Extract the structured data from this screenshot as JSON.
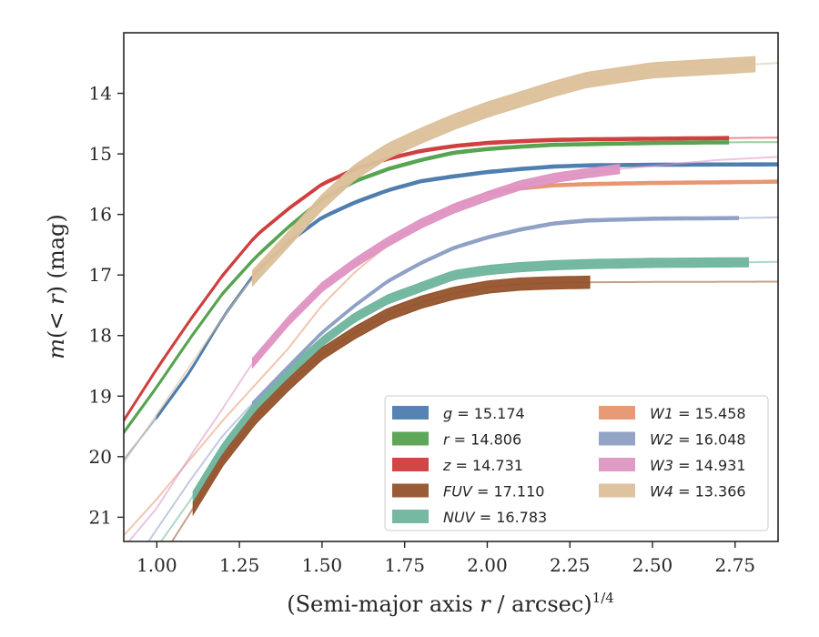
{
  "chart_data": {
    "type": "line",
    "title": "",
    "xlabel": "(Semi-major axis r / arcsec)",
    "xlabel_parts": {
      "prefix": "(Semi-major axis ",
      "var": "r",
      "suffix": " / arcsec)",
      "sup": "1/4"
    },
    "ylabel": "m(< r) (mag)",
    "ylabel_parts": {
      "var": "m",
      "paren": "(< ",
      "var2": "r",
      "close": ")",
      "unit": " (mag)"
    },
    "xlim": [
      0.9,
      2.88
    ],
    "ylim": [
      21.4,
      13.0
    ],
    "y_inverted": true,
    "xticks": [
      "1.00",
      "1.25",
      "1.50",
      "1.75",
      "2.00",
      "2.25",
      "2.50",
      "2.75"
    ],
    "xtick_values": [
      1.0,
      1.25,
      1.5,
      1.75,
      2.0,
      2.25,
      2.5,
      2.75
    ],
    "yticks": [
      "14",
      "15",
      "16",
      "17",
      "18",
      "19",
      "20",
      "21"
    ],
    "ytick_values": [
      14,
      15,
      16,
      17,
      18,
      19,
      20,
      21
    ],
    "grid": false,
    "legend_placement": "lower-right",
    "series": [
      {
        "name": "g = 15.174",
        "band": "g",
        "value": "15.174",
        "color": "#4c7cae",
        "width": 0.05,
        "x_fit": [
          0.9,
          2.88
        ],
        "x_obs": [
          1.0,
          2.88
        ],
        "x": [
          0.9,
          1.0,
          1.1,
          1.2,
          1.3,
          1.4,
          1.5,
          1.6,
          1.7,
          1.8,
          1.9,
          2.0,
          2.1,
          2.2,
          2.3,
          2.5,
          2.7,
          2.88
        ],
        "y": [
          20.05,
          19.35,
          18.6,
          17.7,
          16.95,
          16.45,
          16.05,
          15.8,
          15.6,
          15.45,
          15.37,
          15.3,
          15.25,
          15.21,
          15.19,
          15.18,
          15.175,
          15.174
        ]
      },
      {
        "name": "r = 14.806",
        "band": "r",
        "value": "14.806",
        "color": "#55a24f",
        "width": 0.05,
        "x_fit": [
          0.9,
          2.88
        ],
        "x_obs": [
          0.9,
          2.73
        ],
        "x": [
          0.9,
          1.0,
          1.1,
          1.2,
          1.3,
          1.4,
          1.5,
          1.6,
          1.7,
          1.8,
          1.9,
          2.0,
          2.1,
          2.2,
          2.3,
          2.5,
          2.7,
          2.88
        ],
        "y": [
          19.6,
          18.85,
          18.05,
          17.3,
          16.7,
          16.2,
          15.75,
          15.45,
          15.25,
          15.1,
          14.98,
          14.92,
          14.88,
          14.85,
          14.84,
          14.82,
          14.81,
          14.806
        ]
      },
      {
        "name": "z = 14.731",
        "band": "z",
        "value": "14.731",
        "color": "#d03c3c",
        "width": 0.05,
        "x_fit": [
          0.9,
          2.88
        ],
        "x_obs": [
          0.9,
          2.73
        ],
        "x": [
          0.9,
          1.0,
          1.1,
          1.2,
          1.3,
          1.4,
          1.5,
          1.6,
          1.7,
          1.8,
          1.9,
          2.0,
          2.1,
          2.2,
          2.3,
          2.5,
          2.7,
          2.88
        ],
        "y": [
          19.4,
          18.55,
          17.75,
          17.0,
          16.35,
          15.9,
          15.5,
          15.25,
          15.08,
          14.95,
          14.87,
          14.82,
          14.79,
          14.77,
          14.76,
          14.75,
          14.74,
          14.731
        ]
      },
      {
        "name": "FUV = 17.110",
        "band": "FUV",
        "value": "17.110",
        "color": "#93532b",
        "width": 0.2,
        "x_fit": [
          0.9,
          2.88
        ],
        "x_obs": [
          1.11,
          2.31
        ],
        "x": [
          0.9,
          1.0,
          1.11,
          1.2,
          1.3,
          1.4,
          1.5,
          1.6,
          1.7,
          1.8,
          1.9,
          2.0,
          2.1,
          2.2,
          2.31,
          2.5,
          2.7,
          2.88
        ],
        "y": [
          22.4,
          21.8,
          20.85,
          20.05,
          19.35,
          18.8,
          18.3,
          17.95,
          17.65,
          17.45,
          17.3,
          17.2,
          17.15,
          17.13,
          17.12,
          17.115,
          17.112,
          17.11
        ]
      },
      {
        "name": "NUV = 16.783",
        "band": "NUV",
        "value": "16.783",
        "color": "#6fb59e",
        "width": 0.15,
        "x_fit": [
          0.9,
          2.88
        ],
        "x_obs": [
          1.11,
          2.79
        ],
        "x": [
          0.9,
          1.0,
          1.11,
          1.2,
          1.3,
          1.4,
          1.5,
          1.6,
          1.7,
          1.8,
          1.9,
          2.0,
          2.1,
          2.2,
          2.3,
          2.5,
          2.79,
          2.88
        ],
        "y": [
          22.1,
          21.5,
          20.65,
          19.85,
          19.15,
          18.6,
          18.1,
          17.7,
          17.4,
          17.2,
          17.0,
          16.92,
          16.87,
          16.84,
          16.82,
          16.8,
          16.79,
          16.783
        ]
      },
      {
        "name": "W1 = 15.458",
        "band": "W1",
        "value": "15.458",
        "color": "#e6956e",
        "width": 0.05,
        "x_fit": [
          0.9,
          2.88
        ],
        "x_obs": [
          2.0,
          2.88
        ],
        "x": [
          0.9,
          1.0,
          1.1,
          1.2,
          1.3,
          1.4,
          1.5,
          1.6,
          1.7,
          1.8,
          1.9,
          2.0,
          2.1,
          2.2,
          2.3,
          2.5,
          2.7,
          2.88
        ],
        "y": [
          21.3,
          20.7,
          20.05,
          19.4,
          18.8,
          18.2,
          17.5,
          16.95,
          16.5,
          16.15,
          15.85,
          15.65,
          15.57,
          15.52,
          15.5,
          15.48,
          15.47,
          15.458
        ]
      },
      {
        "name": "W2 = 16.048",
        "band": "W2",
        "value": "16.048",
        "color": "#8e9fc4",
        "width": 0.05,
        "x_fit": [
          0.9,
          2.88
        ],
        "x_obs": [
          1.29,
          2.76
        ],
        "x": [
          0.9,
          1.0,
          1.1,
          1.2,
          1.29,
          1.4,
          1.5,
          1.6,
          1.7,
          1.8,
          1.9,
          2.0,
          2.1,
          2.2,
          2.3,
          2.5,
          2.76,
          2.88
        ],
        "y": [
          22.0,
          21.2,
          20.4,
          19.65,
          19.12,
          18.5,
          17.95,
          17.5,
          17.1,
          16.8,
          16.55,
          16.38,
          16.25,
          16.15,
          16.1,
          16.07,
          16.06,
          16.048
        ]
      },
      {
        "name": "W3 = 14.931",
        "band": "W3",
        "value": "14.931",
        "color": "#df93c2",
        "width": 0.15,
        "x_fit": [
          0.9,
          2.88
        ],
        "x_obs": [
          1.29,
          2.4
        ],
        "x": [
          0.9,
          1.0,
          1.1,
          1.2,
          1.29,
          1.4,
          1.5,
          1.6,
          1.7,
          1.8,
          1.9,
          2.0,
          2.1,
          2.2,
          2.3,
          2.4,
          2.7,
          2.88
        ],
        "y": [
          21.5,
          20.85,
          20.0,
          19.2,
          18.45,
          17.75,
          17.2,
          16.8,
          16.45,
          16.15,
          15.9,
          15.7,
          15.52,
          15.4,
          15.32,
          15.25,
          15.1,
          15.05
        ]
      },
      {
        "name": "W4 = 13.366",
        "band": "W4",
        "value": "13.366",
        "color": "#dcc09a",
        "width": 0.25,
        "x_fit": [
          0.9,
          2.88
        ],
        "x_obs": [
          1.29,
          2.81
        ],
        "x": [
          0.9,
          1.0,
          1.1,
          1.2,
          1.29,
          1.4,
          1.5,
          1.6,
          1.7,
          1.8,
          1.9,
          2.0,
          2.1,
          2.2,
          2.3,
          2.4,
          2.5,
          2.81,
          2.88
        ],
        "y": [
          20.1,
          19.3,
          18.5,
          17.7,
          17.05,
          16.4,
          15.8,
          15.3,
          14.95,
          14.7,
          14.47,
          14.27,
          14.1,
          13.93,
          13.78,
          13.7,
          13.62,
          13.52,
          13.5
        ]
      }
    ]
  }
}
